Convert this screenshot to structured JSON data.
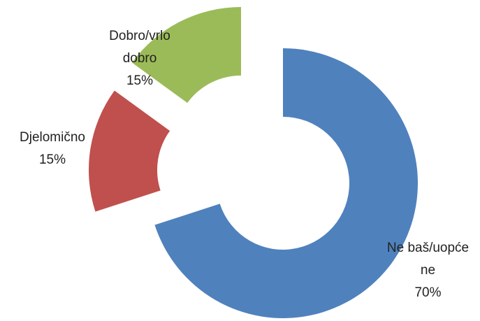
{
  "chart_data": {
    "type": "pie",
    "categories": [
      "Ne baš/uopće ne",
      "Djelomično",
      "Dobro/vrlo dobro"
    ],
    "values": [
      70,
      15,
      15
    ],
    "value_labels": [
      "70%",
      "15%",
      "15%"
    ],
    "colors": [
      "#4f81bd",
      "#c0504d",
      "#9bbb59"
    ]
  }
}
